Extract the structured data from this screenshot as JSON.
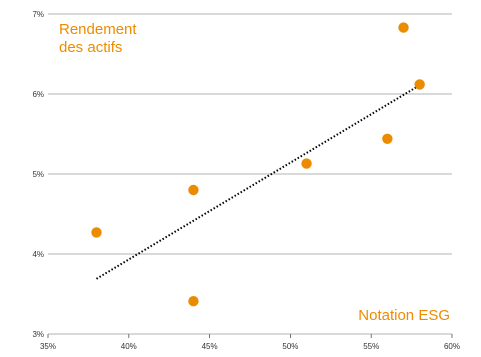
{
  "chart_data": {
    "type": "scatter",
    "title": "",
    "ylabel": "Rendement des actifs",
    "ylabel_lines": [
      "Rendement",
      "des actifs"
    ],
    "xlabel": "Notation ESG",
    "xlim": [
      0.35,
      0.6
    ],
    "ylim": [
      0.03,
      0.07
    ],
    "x_ticks": [
      {
        "value": 0.35,
        "label": "35%"
      },
      {
        "value": 0.4,
        "label": "40%"
      },
      {
        "value": 0.45,
        "label": "45%"
      },
      {
        "value": 0.5,
        "label": "50%"
      },
      {
        "value": 0.55,
        "label": "55%"
      },
      {
        "value": 0.6,
        "label": "60%"
      }
    ],
    "y_ticks": [
      {
        "value": 0.03,
        "label": "3%"
      },
      {
        "value": 0.04,
        "label": "4%"
      },
      {
        "value": 0.05,
        "label": "5%"
      },
      {
        "value": 0.06,
        "label": "6%"
      },
      {
        "value": 0.07,
        "label": "7%"
      }
    ],
    "grid": "horizontal",
    "points": [
      {
        "x": 0.38,
        "y": 0.0427
      },
      {
        "x": 0.44,
        "y": 0.048
      },
      {
        "x": 0.44,
        "y": 0.0341
      },
      {
        "x": 0.51,
        "y": 0.0513
      },
      {
        "x": 0.56,
        "y": 0.0544
      },
      {
        "x": 0.57,
        "y": 0.0683
      },
      {
        "x": 0.58,
        "y": 0.0612
      }
    ],
    "trendline": {
      "style": "dotted",
      "from": {
        "x": 0.38,
        "y": 0.0369
      },
      "to": {
        "x": 0.58,
        "y": 0.0611
      }
    },
    "colors": {
      "points": "#ED8B00",
      "labels": "#ED8B00",
      "trendline": "#000000",
      "grid": "#9a9a9a"
    }
  }
}
